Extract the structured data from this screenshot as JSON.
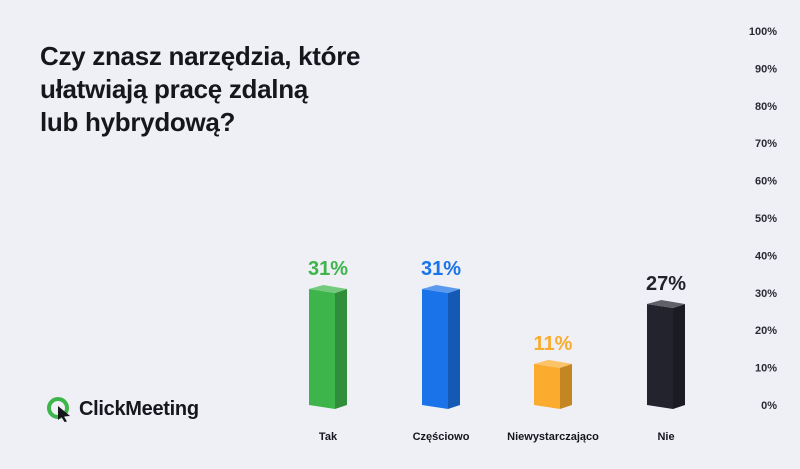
{
  "title_lines": [
    "Czy znasz narzędzia, które",
    "ułatwiają pracę zdalną",
    "lub hybrydową?"
  ],
  "brand": {
    "name": "ClickMeeting",
    "icon": "clickmeeting-logo-icon"
  },
  "colors": {
    "background": "#eef0f5",
    "text": "#16161d",
    "tick": "#2a2a33",
    "logo_green": "#3cb54a"
  },
  "chart_data": {
    "type": "bar",
    "categories": [
      "Tak",
      "Częściowo",
      "Niewystarczająco",
      "Nie"
    ],
    "values": [
      31,
      31,
      11,
      27
    ],
    "value_labels": [
      "31%",
      "31%",
      "11%",
      "27%"
    ],
    "colors": [
      "#3db54a",
      "#1a73e8",
      "#fbab2d",
      "#22232d"
    ],
    "ylim": [
      0,
      100
    ],
    "yticks": [
      0,
      10,
      20,
      30,
      40,
      50,
      60,
      70,
      80,
      90,
      100
    ],
    "ytick_labels": [
      "0%",
      "10%",
      "20%",
      "30%",
      "40%",
      "50%",
      "60%",
      "70%",
      "80%",
      "90%",
      "100%"
    ],
    "y_axis_position": "right",
    "grid": false,
    "style": "3d-column"
  }
}
